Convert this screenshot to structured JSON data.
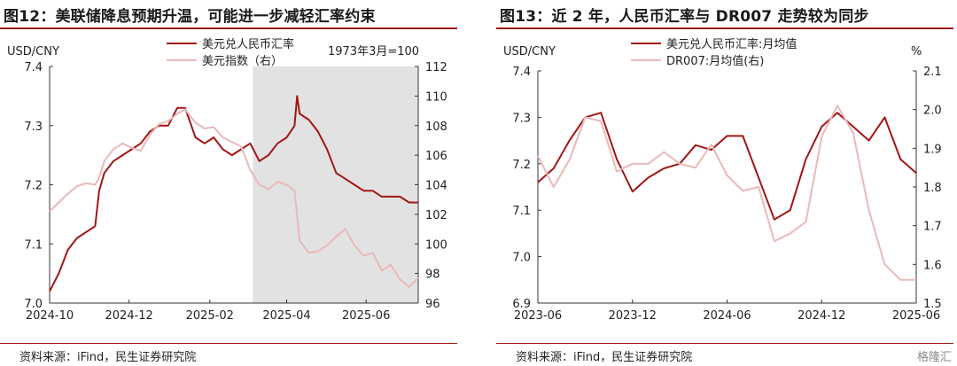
{
  "watermark": "格隆汇",
  "charts": [
    {
      "figure_title": "图12：美联储降息预期升温，可能进一步减轻汇率约束",
      "source": "资料来源：iFind，民生证券研究院",
      "left_unit": "USD/CNY",
      "note": "1973年3月=100",
      "legend": [
        "美元兑人民币汇率",
        "美元指数（右）"
      ]
    },
    {
      "figure_title": "图13：近 2 年，人民币汇率与 DR007 走势较为同步",
      "source": "资料来源：iFind，民生证券研究院",
      "left_unit": "USD/CNY",
      "right_unit": "%",
      "legend": [
        "美元兑人民币汇率:月均值",
        "DR007:月均值(右)"
      ]
    }
  ],
  "chart_data": [
    {
      "type": "line",
      "title": "图12：美联储降息预期升温，可能进一步减轻汇率约束",
      "x_tick_labels": [
        "2024-10",
        "2024-12",
        "2025-02",
        "2025-04",
        "2025-06"
      ],
      "x_range": [
        "2024-10-01",
        "2025-07-11"
      ],
      "ylim_left": [
        7.0,
        7.4
      ],
      "y_ticks_left": [
        "7.0",
        "7.1",
        "7.2",
        "7.3",
        "7.4"
      ],
      "ylim_right": [
        96,
        112
      ],
      "y_ticks_right": [
        "96",
        "98",
        "100",
        "102",
        "104",
        "106",
        "108",
        "110",
        "112"
      ],
      "shaded_range": [
        "2025-03-06",
        "2025-07-11"
      ],
      "shaded_color": "#e2e2e2",
      "series": [
        {
          "name": "美元兑人民币汇率",
          "axis": "left",
          "color": "#a31515",
          "x": [
            "2024-10-01",
            "2024-10-08",
            "2024-10-15",
            "2024-10-22",
            "2024-10-29",
            "2024-11-05",
            "2024-11-08",
            "2024-11-12",
            "2024-11-19",
            "2024-11-26",
            "2024-12-03",
            "2024-12-10",
            "2024-12-17",
            "2024-12-24",
            "2024-12-31",
            "2025-01-07",
            "2025-01-13",
            "2025-01-21",
            "2025-01-28",
            "2025-02-04",
            "2025-02-11",
            "2025-02-18",
            "2025-02-25",
            "2025-03-04",
            "2025-03-11",
            "2025-03-18",
            "2025-03-25",
            "2025-04-01",
            "2025-04-07",
            "2025-04-09",
            "2025-04-11",
            "2025-04-18",
            "2025-04-25",
            "2025-05-02",
            "2025-05-09",
            "2025-05-16",
            "2025-05-23",
            "2025-05-30",
            "2025-06-06",
            "2025-06-13",
            "2025-06-20",
            "2025-06-27",
            "2025-07-04",
            "2025-07-11"
          ],
          "y": [
            7.02,
            7.05,
            7.09,
            7.11,
            7.12,
            7.13,
            7.19,
            7.22,
            7.24,
            7.25,
            7.26,
            7.27,
            7.29,
            7.3,
            7.3,
            7.33,
            7.33,
            7.28,
            7.27,
            7.28,
            7.26,
            7.25,
            7.26,
            7.27,
            7.24,
            7.25,
            7.27,
            7.28,
            7.3,
            7.35,
            7.32,
            7.31,
            7.29,
            7.26,
            7.22,
            7.21,
            7.2,
            7.19,
            7.19,
            7.18,
            7.18,
            7.18,
            7.17,
            7.17
          ]
        },
        {
          "name": "美元指数（右）",
          "axis": "right",
          "color": "#eab8b8",
          "x": [
            "2024-10-01",
            "2024-10-08",
            "2024-10-15",
            "2024-10-22",
            "2024-10-29",
            "2024-11-05",
            "2024-11-08",
            "2024-11-12",
            "2024-11-19",
            "2024-11-26",
            "2024-12-03",
            "2024-12-10",
            "2024-12-17",
            "2024-12-24",
            "2024-12-31",
            "2025-01-07",
            "2025-01-13",
            "2025-01-21",
            "2025-01-28",
            "2025-02-04",
            "2025-02-11",
            "2025-02-18",
            "2025-02-25",
            "2025-03-04",
            "2025-03-11",
            "2025-03-18",
            "2025-03-25",
            "2025-04-01",
            "2025-04-07",
            "2025-04-11",
            "2025-04-18",
            "2025-04-25",
            "2025-05-02",
            "2025-05-09",
            "2025-05-16",
            "2025-05-23",
            "2025-05-30",
            "2025-06-06",
            "2025-06-13",
            "2025-06-20",
            "2025-06-27",
            "2025-07-04",
            "2025-07-11"
          ],
          "y": [
            102.2,
            102.8,
            103.4,
            103.9,
            104.1,
            104.0,
            104.5,
            105.6,
            106.4,
            106.8,
            106.5,
            106.3,
            107.4,
            108.1,
            108.3,
            108.8,
            109.1,
            108.2,
            107.8,
            107.9,
            107.2,
            106.9,
            106.6,
            105.0,
            104.0,
            103.7,
            104.2,
            104.0,
            103.6,
            100.2,
            99.4,
            99.5,
            99.9,
            100.5,
            101.0,
            99.9,
            99.2,
            99.4,
            98.2,
            98.6,
            97.6,
            97.1,
            97.7
          ]
        }
      ]
    },
    {
      "type": "line",
      "title": "图13：近 2 年，人民币汇率与 DR007 走势较为同步",
      "x_tick_labels": [
        "2023-06",
        "2023-12",
        "2024-06",
        "2024-12",
        "2025-06"
      ],
      "ylim_left": [
        6.9,
        7.4
      ],
      "y_ticks_left": [
        "6.9",
        "7.0",
        "7.1",
        "7.2",
        "7.3",
        "7.4"
      ],
      "ylim_right": [
        1.5,
        2.1
      ],
      "y_ticks_right": [
        "1.5",
        "1.6",
        "1.7",
        "1.8",
        "1.9",
        "2.0",
        "2.1"
      ],
      "series": [
        {
          "name": "美元兑人民币汇率:月均值",
          "axis": "left",
          "color": "#a31515",
          "x": [
            "2023-06",
            "2023-07",
            "2023-08",
            "2023-09",
            "2023-10",
            "2023-11",
            "2023-12",
            "2024-01",
            "2024-02",
            "2024-03",
            "2024-04",
            "2024-05",
            "2024-06",
            "2024-07",
            "2024-08",
            "2024-09",
            "2024-10",
            "2024-11",
            "2024-12",
            "2025-01",
            "2025-02",
            "2025-03",
            "2025-04",
            "2025-05",
            "2025-06"
          ],
          "y": [
            7.16,
            7.19,
            7.25,
            7.3,
            7.31,
            7.21,
            7.14,
            7.17,
            7.19,
            7.2,
            7.24,
            7.23,
            7.26,
            7.26,
            7.17,
            7.08,
            7.1,
            7.21,
            7.28,
            7.31,
            7.28,
            7.25,
            7.3,
            7.21,
            7.18
          ]
        },
        {
          "name": "DR007:月均值(右)",
          "axis": "right",
          "color": "#eab8b8",
          "x": [
            "2023-06",
            "2023-07",
            "2023-08",
            "2023-09",
            "2023-10",
            "2023-11",
            "2023-12",
            "2024-01",
            "2024-02",
            "2024-03",
            "2024-04",
            "2024-05",
            "2024-06",
            "2024-07",
            "2024-08",
            "2024-09",
            "2024-10",
            "2024-11",
            "2024-12",
            "2025-01",
            "2025-02",
            "2025-03",
            "2025-04",
            "2025-05",
            "2025-06"
          ],
          "y": [
            1.88,
            1.8,
            1.87,
            1.98,
            1.97,
            1.84,
            1.86,
            1.86,
            1.89,
            1.86,
            1.85,
            1.91,
            1.83,
            1.79,
            1.8,
            1.66,
            1.68,
            1.71,
            1.93,
            2.01,
            1.94,
            1.74,
            1.6,
            1.56,
            1.56
          ]
        }
      ]
    }
  ]
}
